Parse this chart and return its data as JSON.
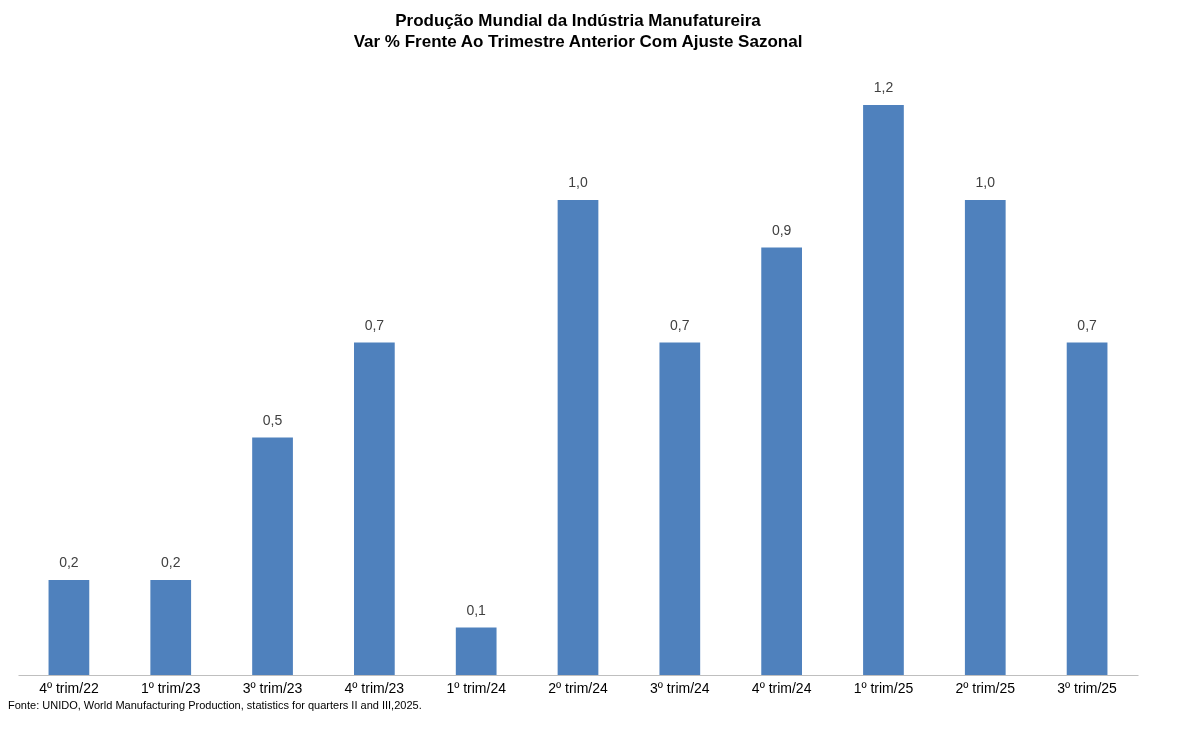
{
  "chart_data": {
    "type": "bar",
    "title": "Produção Mundial da Indústria Manufatureira",
    "subtitle": "Var % Frente Ao Trimestre Anterior Com Ajuste Sazonal",
    "categories": [
      "4º trim/22",
      "1º trim/23",
      "3º trim/23",
      "4º trim/23",
      "1º trim/24",
      "2º trim/24",
      "3º trim/24",
      "4º trim/24",
      "1º trim/25",
      "2º trim/25",
      "3º trim/25"
    ],
    "values": [
      0.2,
      0.2,
      0.5,
      0.7,
      0.1,
      1.0,
      0.7,
      0.9,
      1.2,
      1.0,
      0.7
    ],
    "value_labels": [
      "0,2",
      "0,2",
      "0,5",
      "0,7",
      "0,1",
      "1,0",
      "0,7",
      "0,9",
      "1,2",
      "1,0",
      "0,7"
    ],
    "color": "#4f81bd",
    "grid": false,
    "annotations": [
      "Fonte: UNIDO, World Manufacturing Production, statistics for quarters II and III,2025."
    ]
  }
}
